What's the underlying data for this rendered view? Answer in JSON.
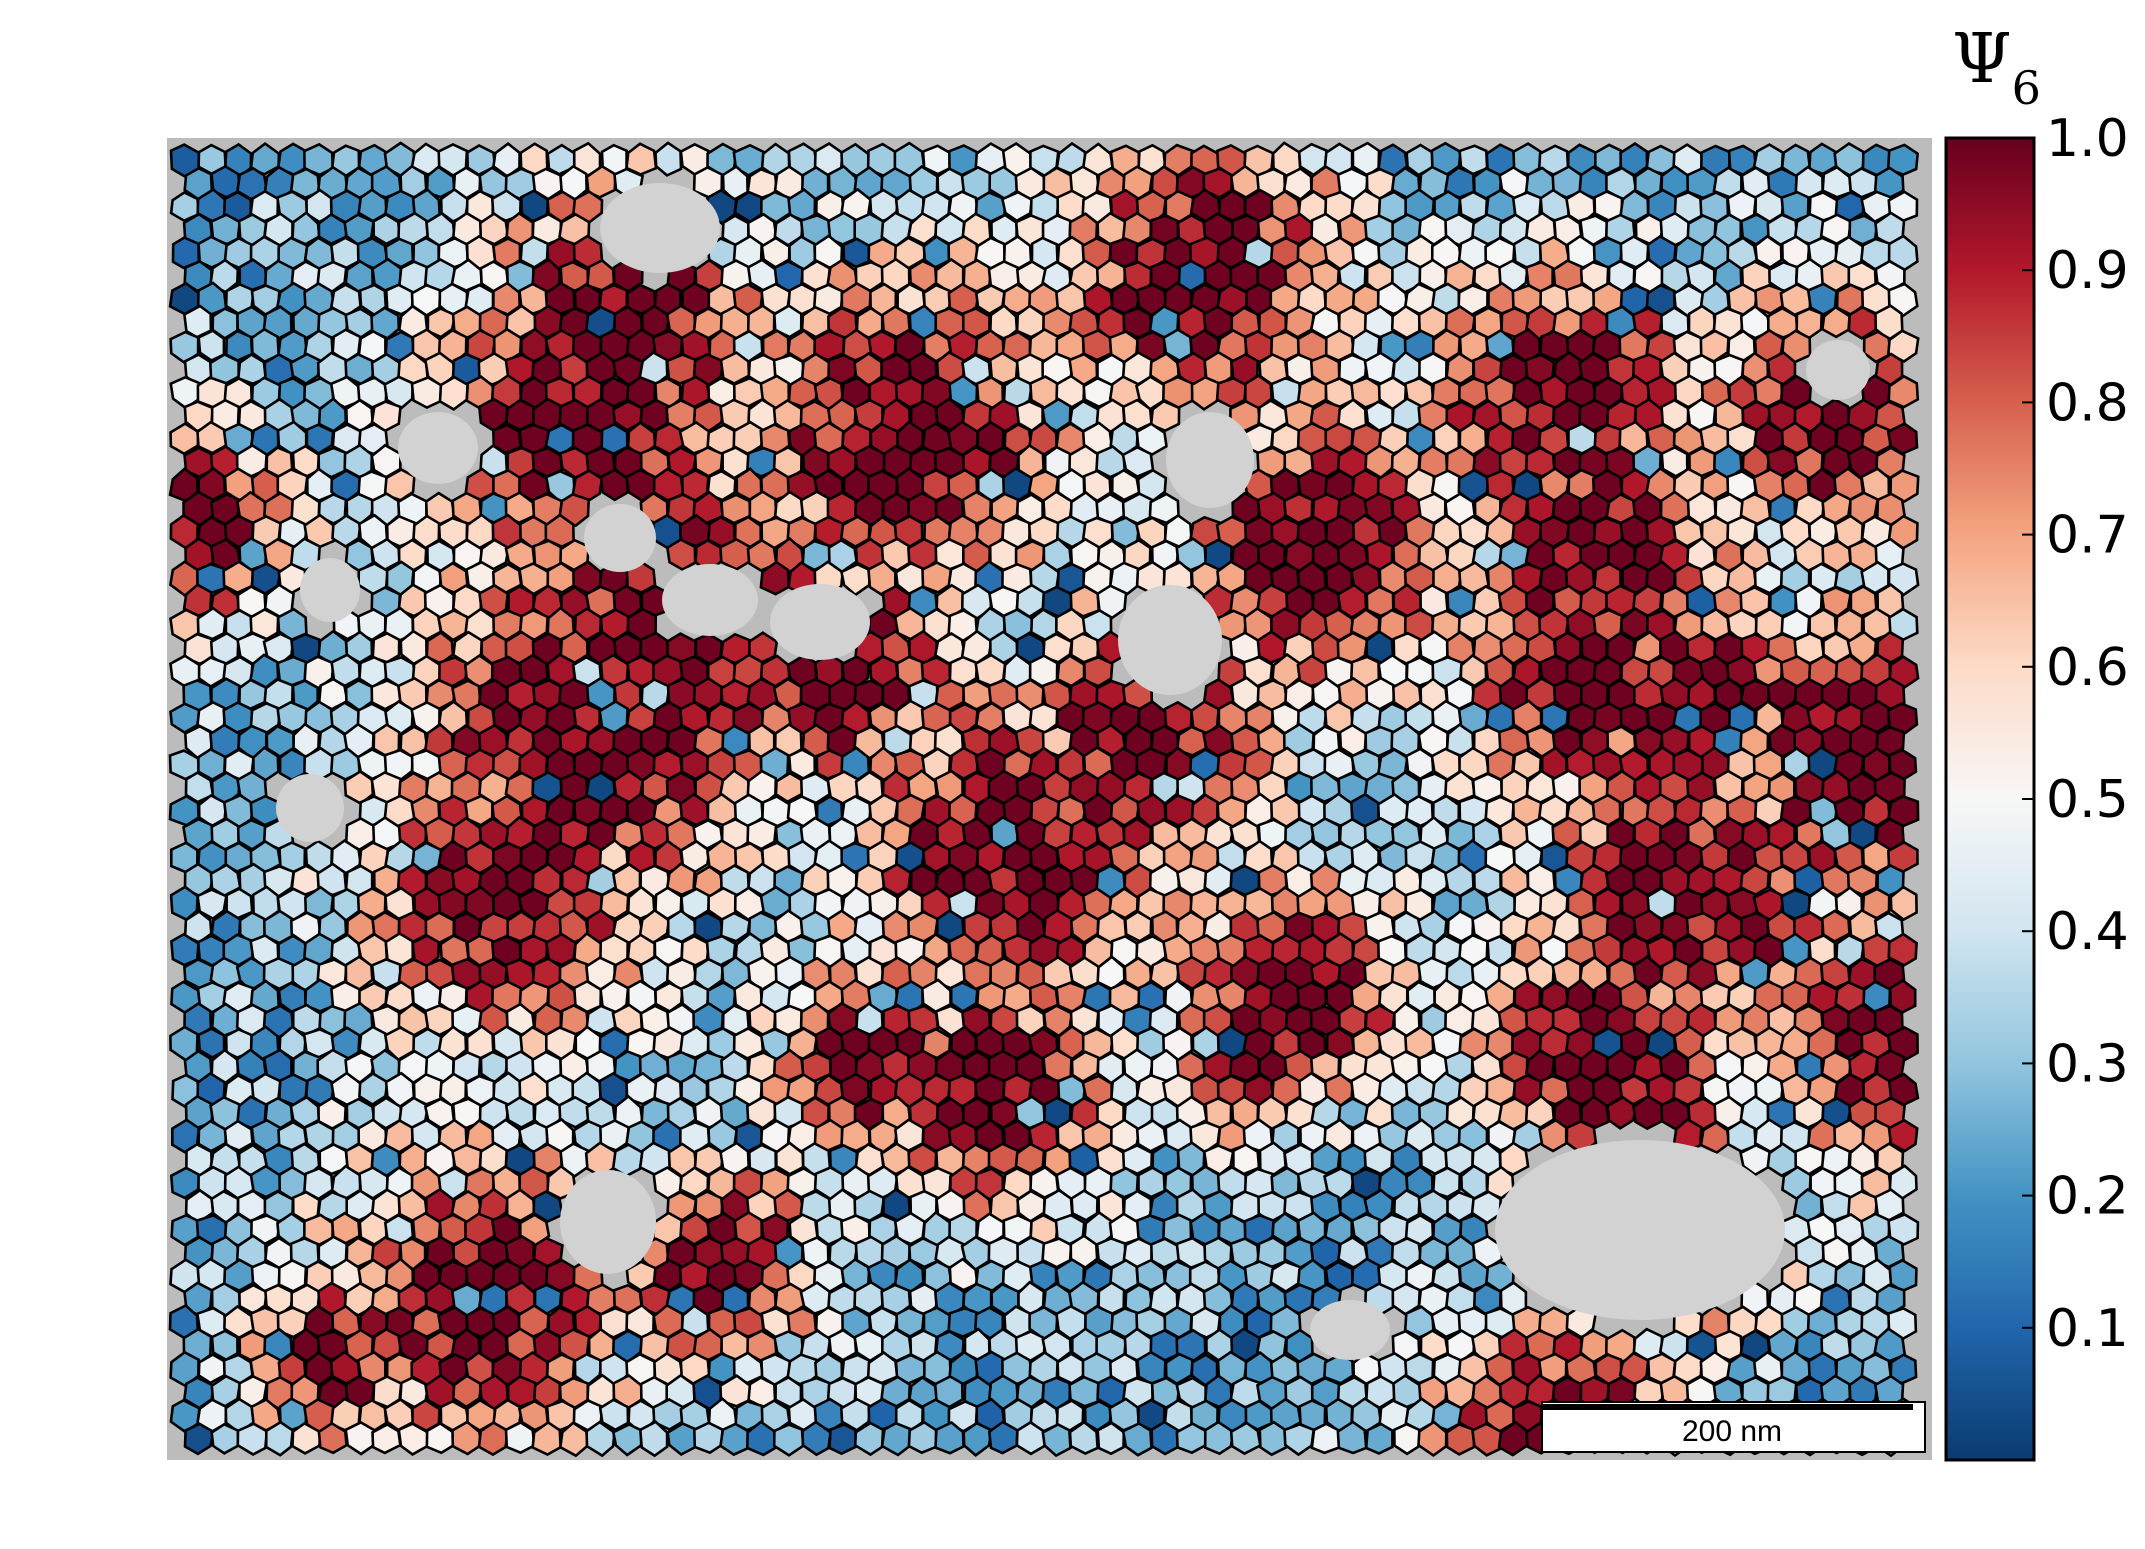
{
  "figure": {
    "colorbar": {
      "title_symbol": "Ψ",
      "title_subscript": "6",
      "colormap": "RdBu_r",
      "range": [
        0.0,
        1.0
      ],
      "ticks": [
        "1.0",
        "0.9",
        "0.8",
        "0.7",
        "0.6",
        "0.5",
        "0.4",
        "0.3",
        "0.2",
        "0.1"
      ],
      "stops": [
        "#0b3b70",
        "#2166ac",
        "#4393c3",
        "#92c5de",
        "#d1e5f0",
        "#f7f7f7",
        "#fddbc7",
        "#f4a582",
        "#d6604d",
        "#b2182b",
        "#67001f"
      ]
    },
    "scale_bar": {
      "label": "200 nm"
    },
    "voids_color": "#d2d2d2",
    "background_color": "#bcbcbc"
  }
}
